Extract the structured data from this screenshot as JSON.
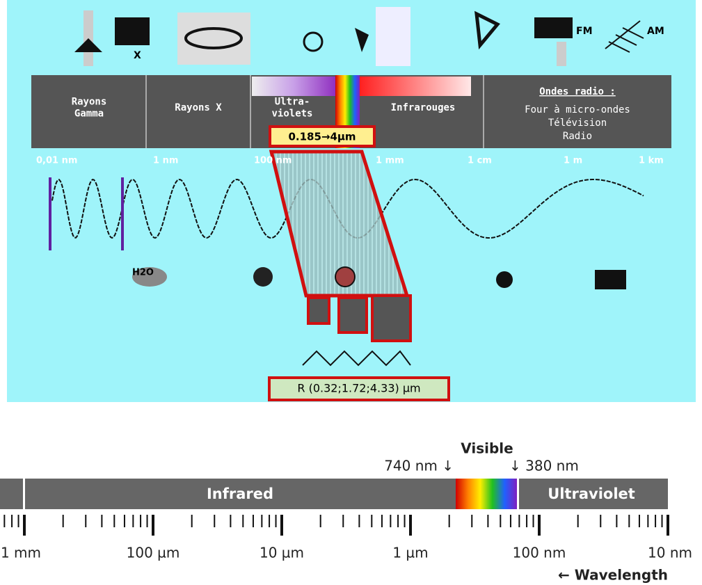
{
  "icons": {
    "x_label": "X",
    "fm": "FM",
    "am": "AM",
    "h2o": "H2O"
  },
  "bands": [
    {
      "lines": [
        "Rayons",
        "Gamma"
      ]
    },
    {
      "lines": [
        "Rayons X"
      ]
    },
    {
      "lines": [
        "Ultra-",
        "violets"
      ]
    },
    {
      "lines": [
        "Infrarouges"
      ]
    }
  ],
  "radio": {
    "title": "Ondes radio :",
    "lines": [
      "Four à micro-ondes",
      "Télévision",
      "Radio"
    ]
  },
  "range_box": "0.185→4µm",
  "scale": [
    "0,01 nm",
    "1 nm",
    "100 nm",
    "1 mm",
    "1 cm",
    "1 m",
    "1 km"
  ],
  "result_box": "R (0.32;1.72;4.33) µm",
  "bottom": {
    "visible": "Visible",
    "left_marker": "740 nm ↓",
    "right_marker": "↓ 380 nm",
    "infrared": "Infrared",
    "ultraviolet": "Ultraviolet",
    "scale": [
      "1 mm",
      "100 µm",
      "10 µm",
      "1 µm",
      "100 nm",
      "10 nm"
    ],
    "axis": "← Wavelength"
  }
}
